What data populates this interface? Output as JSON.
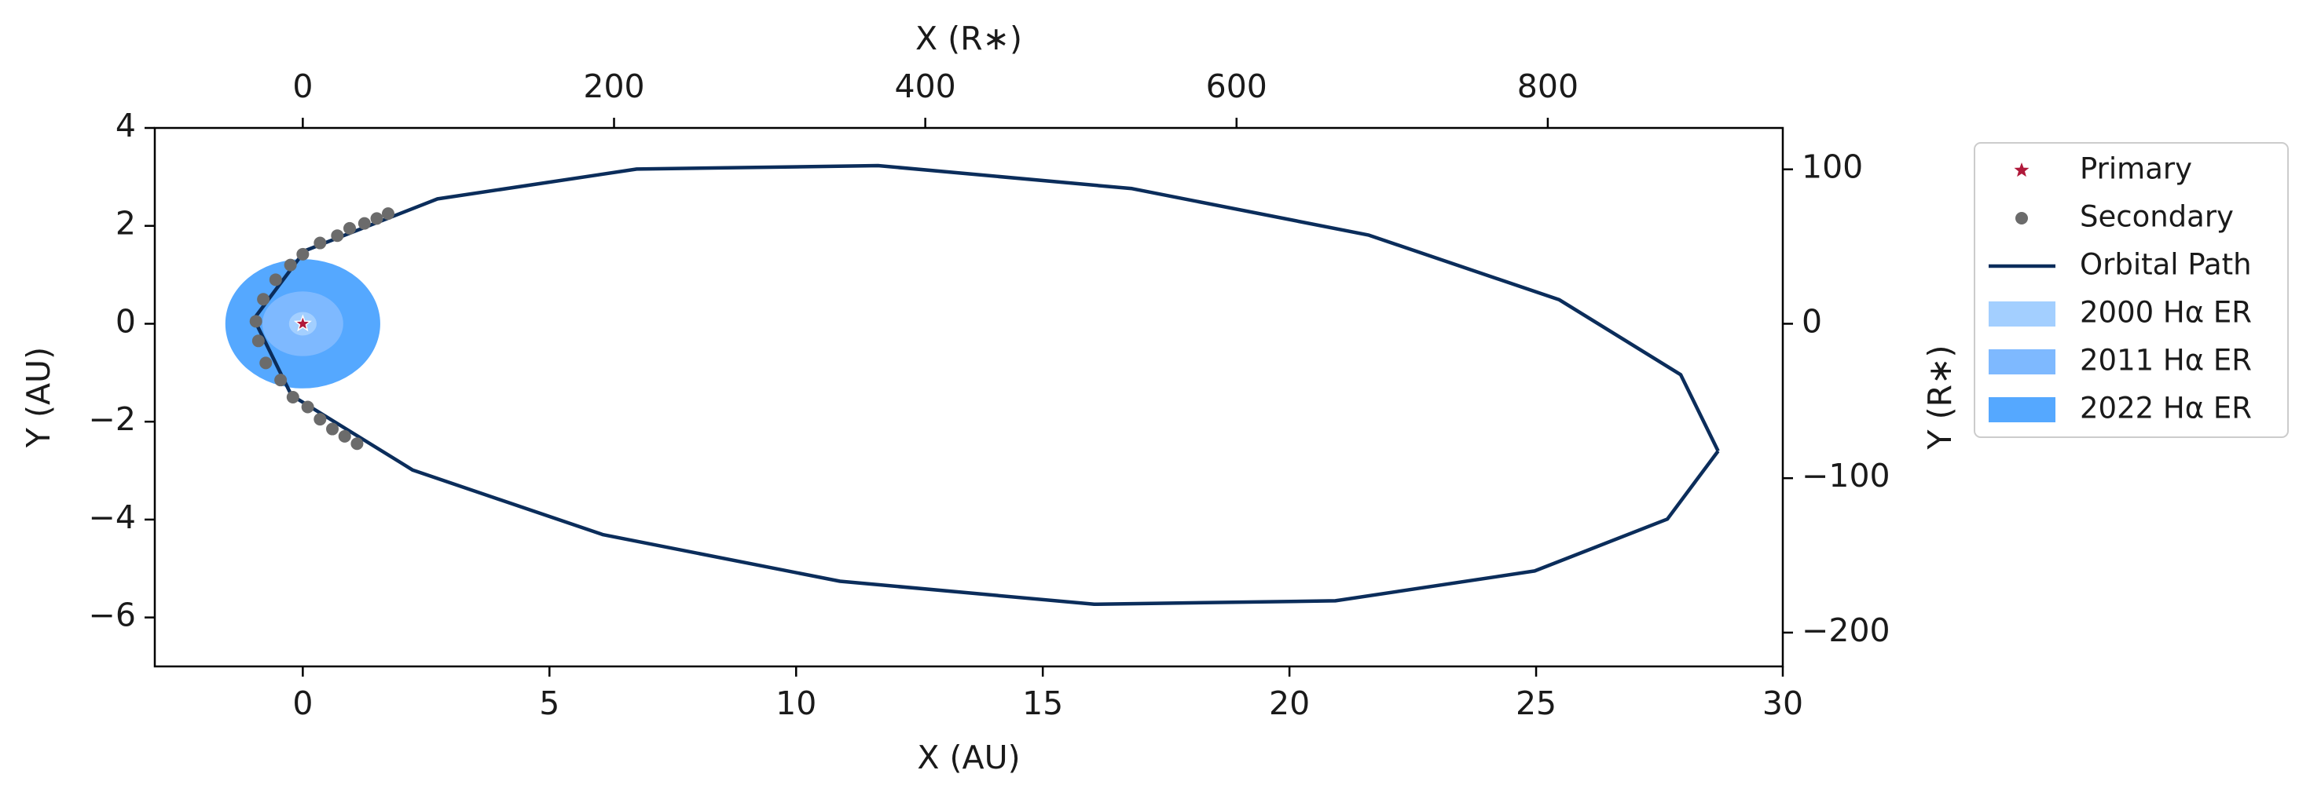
{
  "chart_data": {
    "type": "scatter",
    "xlabel": "X (AU)",
    "ylabel": "Y (AU)",
    "x2label": "X (R∗)",
    "y2label": "Y (R∗)",
    "xlim": [
      -3,
      30
    ],
    "xticks": [
      0,
      5,
      10,
      15,
      20,
      25,
      30
    ],
    "ylim": [
      -7,
      4
    ],
    "yticks": [
      {
        "value": -6,
        "label": "−6"
      },
      {
        "value": -4,
        "label": "−4"
      },
      {
        "value": -2,
        "label": "−2"
      },
      0,
      2,
      4
    ],
    "x2lim": [
      -95.1,
      951
    ],
    "x2ticks": [
      0,
      200,
      400,
      600,
      800
    ],
    "y2lim": [
      -221.9,
      126.8
    ],
    "y2ticks": [
      {
        "value": -200,
        "label": "−200"
      },
      {
        "value": -100,
        "label": "−100"
      },
      0,
      100
    ],
    "legend": "outside right",
    "series": [
      {
        "name": "2022 Hα ER",
        "kind": "ellipse",
        "color": "#55a8ff",
        "x": [
          0
        ],
        "y": [
          0
        ],
        "rx": [
          1.57
        ],
        "ry": [
          1.32
        ]
      },
      {
        "name": "2011 Hα ER",
        "kind": "ellipse",
        "color": "#7eb9ff",
        "x": [
          0
        ],
        "y": [
          0
        ],
        "rx": [
          0.82
        ],
        "ry": [
          0.66
        ]
      },
      {
        "name": "2000 Hα ER",
        "kind": "ellipse",
        "color": "#a3cfff",
        "x": [
          0
        ],
        "y": [
          0
        ],
        "rx": [
          0.28
        ],
        "ry": [
          0.24
        ]
      },
      {
        "name": "Orbital Path",
        "kind": "line",
        "color": "#0b2d5b",
        "x": [
          28.69,
          27.93,
          25.47,
          21.61,
          16.81,
          11.66,
          6.77,
          2.73,
          0.04,
          -0.99,
          -0.23,
          2.23,
          6.09,
          10.89,
          16.04,
          20.93,
          24.97,
          27.66,
          28.69
        ],
        "y": [
          -2.6,
          -1.04,
          0.49,
          1.81,
          2.76,
          3.23,
          3.16,
          2.55,
          1.49,
          0.1,
          -1.46,
          -2.99,
          -4.31,
          -5.26,
          -5.73,
          -5.66,
          -5.05,
          -3.99,
          -2.6
        ]
      },
      {
        "name": "Secondary",
        "kind": "points",
        "color": "#6b6b6b",
        "x": [
          1.73,
          1.5,
          1.25,
          0.95,
          0.7,
          0.35,
          0,
          -0.25,
          -0.55,
          -0.8,
          -0.95,
          -0.9,
          -0.75,
          -0.45,
          -0.2,
          0.1,
          0.35,
          0.6,
          0.85,
          1.1
        ],
        "y": [
          2.25,
          2.15,
          2.05,
          1.95,
          1.8,
          1.65,
          1.42,
          1.2,
          0.9,
          0.5,
          0.05,
          -0.35,
          -0.8,
          -1.15,
          -1.5,
          -1.7,
          -1.95,
          -2.15,
          -2.3,
          -2.45
        ]
      },
      {
        "name": "Primary",
        "kind": "star",
        "color": "#b0193a",
        "x": [
          0
        ],
        "y": [
          0
        ]
      }
    ],
    "legend_order": [
      5,
      4,
      3,
      2,
      1,
      0
    ]
  }
}
